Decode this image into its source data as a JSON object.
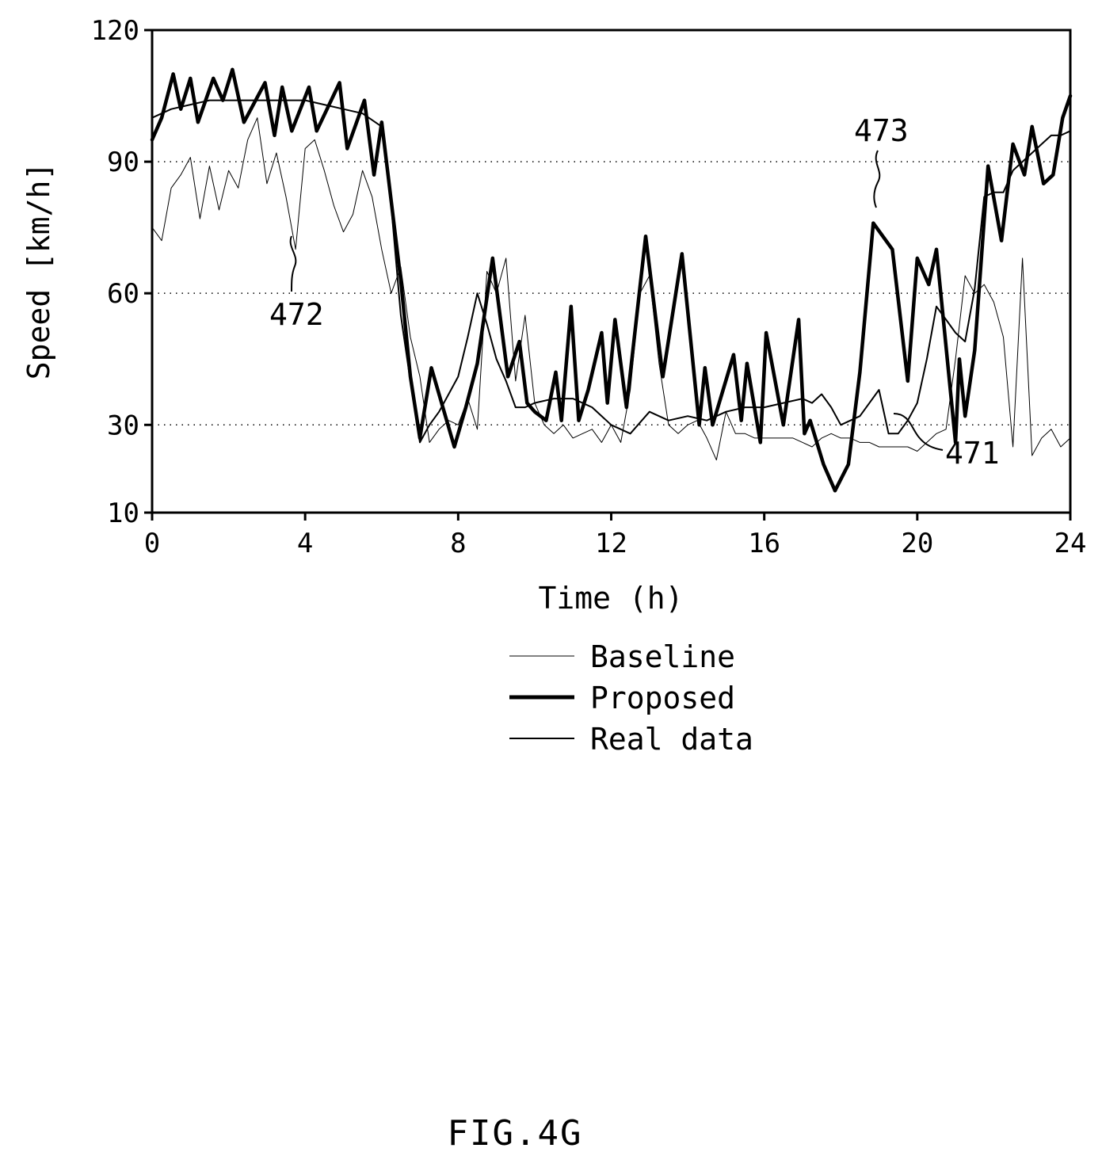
{
  "figure": {
    "caption": "FIG.4G"
  },
  "chart_data": {
    "type": "line",
    "xlabel": "Time (h)",
    "ylabel": "Speed [km/h]",
    "xlim": [
      0,
      24
    ],
    "ylim": [
      10,
      120
    ],
    "xticks": [
      0,
      4,
      8,
      12,
      16,
      20,
      24
    ],
    "yticks": [
      10,
      30,
      60,
      90,
      120
    ],
    "ygrid": [
      30,
      60,
      90
    ],
    "grid": "dotted horizontal",
    "legend_position": "below",
    "series": [
      {
        "name": "Baseline",
        "style": "thin",
        "x": [
          0,
          0.25,
          0.5,
          0.75,
          1,
          1.25,
          1.5,
          1.75,
          2,
          2.25,
          2.5,
          2.75,
          3,
          3.25,
          3.5,
          3.75,
          4,
          4.25,
          4.5,
          4.75,
          5,
          5.25,
          5.5,
          5.75,
          6,
          6.25,
          6.5,
          6.75,
          7,
          7.25,
          7.5,
          7.75,
          8,
          8.25,
          8.5,
          8.75,
          9,
          9.25,
          9.5,
          9.75,
          10,
          10.25,
          10.5,
          10.75,
          11,
          11.25,
          11.5,
          11.75,
          12,
          12.25,
          12.5,
          12.75,
          13,
          13.25,
          13.5,
          13.75,
          14,
          14.25,
          14.5,
          14.75,
          15,
          15.25,
          15.5,
          15.75,
          16,
          16.25,
          16.5,
          16.75,
          17,
          17.25,
          17.5,
          17.75,
          18,
          18.25,
          18.5,
          18.75,
          19,
          19.25,
          19.5,
          19.75,
          20,
          20.25,
          20.5,
          20.75,
          21,
          21.25,
          21.5,
          21.75,
          22,
          22.25,
          22.5,
          22.75,
          23,
          23.25,
          23.5,
          23.75,
          24
        ],
        "values": [
          75,
          72,
          84,
          87,
          91,
          77,
          89,
          79,
          88,
          84,
          95,
          100,
          85,
          92,
          82,
          70,
          93,
          95,
          88,
          80,
          74,
          78,
          88,
          82,
          70,
          60,
          66,
          50,
          41,
          26,
          29,
          31,
          30,
          36,
          29,
          65,
          60,
          68,
          40,
          55,
          35,
          30,
          28,
          30,
          27,
          28,
          29,
          26,
          30,
          26,
          38,
          60,
          64,
          44,
          30,
          28,
          30,
          31,
          27,
          22,
          33,
          28,
          28,
          27,
          27,
          27,
          27,
          27,
          26,
          25,
          27,
          28,
          27,
          27,
          26,
          26,
          25,
          25,
          25,
          25,
          24,
          26,
          28,
          29,
          45,
          64,
          60,
          62,
          58,
          50,
          25,
          68,
          23,
          27,
          29,
          25,
          27
        ]
      },
      {
        "name": "Proposed",
        "style": "thick",
        "x": [
          0,
          0.25,
          0.55,
          0.75,
          1,
          1.2,
          1.6,
          1.85,
          2.1,
          2.4,
          2.95,
          3.2,
          3.4,
          3.65,
          4.1,
          4.3,
          4.9,
          5.1,
          5.55,
          5.8,
          6,
          6.25,
          6.5,
          6.75,
          7,
          7.3,
          7.6,
          7.9,
          8.2,
          8.5,
          8.9,
          9.3,
          9.6,
          9.8,
          10,
          10.3,
          10.55,
          10.7,
          10.95,
          11.15,
          11.4,
          11.75,
          11.9,
          12.1,
          12.4,
          12.9,
          13.35,
          13.85,
          14.3,
          14.45,
          14.65,
          15.2,
          15.4,
          15.55,
          15.9,
          16.05,
          16.5,
          16.9,
          17.05,
          17.2,
          17.55,
          17.85,
          18.2,
          18.5,
          18.85,
          19.35,
          19.75,
          20,
          20.3,
          20.5,
          21,
          21.1,
          21.25,
          21.5,
          21.85,
          22.2,
          22.5,
          22.8,
          23,
          23.3,
          23.55,
          23.8,
          24
        ],
        "values": [
          95,
          100,
          110,
          102,
          109,
          99,
          109,
          104,
          111,
          99,
          108,
          96,
          107,
          97,
          107,
          97,
          108,
          93,
          104,
          87,
          99,
          81,
          63,
          41,
          27,
          43,
          34,
          25,
          34,
          44,
          68,
          41,
          49,
          35,
          33,
          31,
          42,
          31,
          57,
          31,
          38,
          51,
          35,
          54,
          34,
          73,
          41,
          69,
          30,
          43,
          30,
          46,
          31,
          44,
          26,
          51,
          30,
          54,
          28,
          31,
          21,
          15,
          21,
          42,
          76,
          70,
          40,
          68,
          62,
          70,
          26,
          45,
          32,
          47,
          89,
          72,
          94,
          87,
          98,
          85,
          87,
          100,
          105
        ]
      },
      {
        "name": "Real data",
        "style": "medium",
        "x": [
          0,
          0.5,
          1,
          1.5,
          2,
          2.5,
          3,
          3.5,
          4,
          4.5,
          5,
          5.5,
          6,
          6.25,
          6.5,
          6.75,
          7,
          7.25,
          7.5,
          7.75,
          8,
          8.25,
          8.5,
          8.75,
          9,
          9.25,
          9.5,
          9.75,
          10,
          10.5,
          11,
          11.5,
          12,
          12.5,
          13,
          13.5,
          14,
          14.5,
          15,
          15.5,
          16,
          16.5,
          17,
          17.25,
          17.5,
          17.75,
          18,
          18.5,
          19,
          19.25,
          19.5,
          19.75,
          20,
          20.25,
          20.5,
          20.75,
          21,
          21.25,
          21.5,
          21.75,
          22,
          22.25,
          22.5,
          22.75,
          23,
          23.25,
          23.5,
          23.75,
          24
        ],
        "values": [
          100,
          102,
          103,
          104,
          104,
          104,
          104,
          104,
          104,
          103,
          102,
          101,
          98,
          80,
          55,
          40,
          26,
          30,
          33,
          37,
          41,
          50,
          60,
          53,
          45,
          40,
          34,
          34,
          35,
          36,
          36,
          34,
          30,
          28,
          33,
          31,
          32,
          31,
          33,
          34,
          34,
          35,
          36,
          35,
          37,
          34,
          30,
          32,
          38,
          28,
          28,
          31,
          35,
          45,
          57,
          54,
          51,
          49,
          61,
          82,
          83,
          83,
          88,
          90,
          92,
          94,
          96,
          96,
          97
        ]
      }
    ],
    "annotations": [
      "471",
      "472",
      "473"
    ]
  }
}
